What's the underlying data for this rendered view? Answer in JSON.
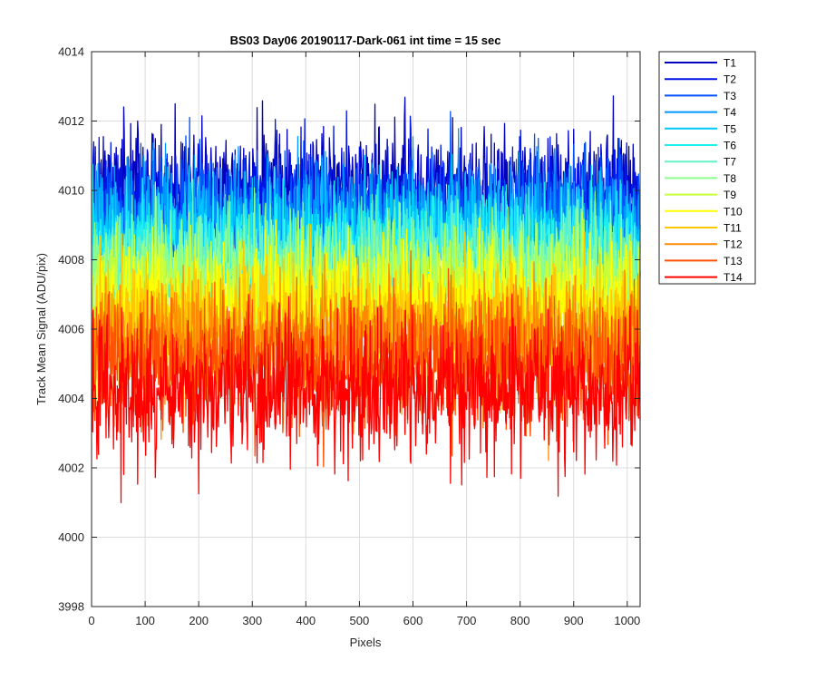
{
  "chart_data": {
    "type": "line",
    "title": "BS03 Day06 20190117-Dark-061 int time = 15 sec",
    "xlabel": "Pixels",
    "ylabel": "Track Mean Signal (ADU/pix)",
    "xlim": [
      0,
      1024
    ],
    "ylim": [
      3998,
      4014
    ],
    "xticks": [
      0,
      100,
      200,
      300,
      400,
      500,
      600,
      700,
      800,
      900,
      1000
    ],
    "yticks": [
      3998,
      4000,
      4002,
      4004,
      4006,
      4008,
      4010,
      4012,
      4014
    ],
    "grid": true,
    "legend_position": "outside-right",
    "n_points_per_series": 1024,
    "series": [
      {
        "name": "T1",
        "color": "#0000bf",
        "mean": 4010.0,
        "spread": 0.85
      },
      {
        "name": "T2",
        "color": "#0014e6",
        "mean": 4009.6,
        "spread": 0.85
      },
      {
        "name": "T3",
        "color": "#0052ff",
        "mean": 4009.3,
        "spread": 0.85
      },
      {
        "name": "T4",
        "color": "#0096ff",
        "mean": 4009.0,
        "spread": 0.85
      },
      {
        "name": "T5",
        "color": "#00c8ff",
        "mean": 4008.7,
        "spread": 0.85
      },
      {
        "name": "T6",
        "color": "#1ef0f0",
        "mean": 4008.3,
        "spread": 0.85
      },
      {
        "name": "T7",
        "color": "#64f0c8",
        "mean": 4007.9,
        "spread": 0.85
      },
      {
        "name": "T8",
        "color": "#8cff8c",
        "mean": 4007.5,
        "spread": 0.85
      },
      {
        "name": "T9",
        "color": "#c8ff3c",
        "mean": 4007.1,
        "spread": 0.85
      },
      {
        "name": "T10",
        "color": "#ffff00",
        "mean": 4006.7,
        "spread": 0.85
      },
      {
        "name": "T11",
        "color": "#ffc800",
        "mean": 4006.2,
        "spread": 0.9
      },
      {
        "name": "T12",
        "color": "#ff8c00",
        "mean": 4005.6,
        "spread": 0.9
      },
      {
        "name": "T13",
        "color": "#ff5000",
        "mean": 4005.0,
        "spread": 0.95
      },
      {
        "name": "T14",
        "color": "#ff0000",
        "mean": 4004.3,
        "spread": 1.0
      }
    ]
  }
}
